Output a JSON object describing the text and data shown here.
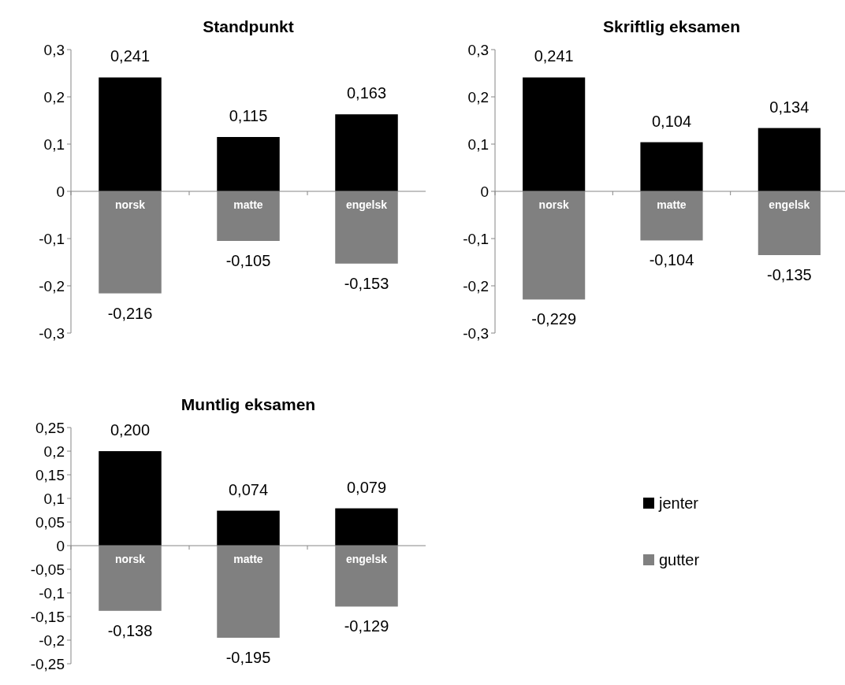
{
  "chart_data": [
    {
      "type": "bar",
      "stacked": true,
      "title": "Standpunkt",
      "categories": [
        "norsk",
        "matte",
        "engelsk"
      ],
      "ylim": [
        -0.3,
        0.3
      ],
      "yticks": [
        {
          "value": -0.3,
          "label": "-0,3"
        },
        {
          "value": -0.2,
          "label": "-0,2"
        },
        {
          "value": -0.1,
          "label": "-0,1"
        },
        {
          "value": 0,
          "label": "0"
        },
        {
          "value": 0.1,
          "label": "0,1"
        },
        {
          "value": 0.2,
          "label": "0,2"
        },
        {
          "value": 0.3,
          "label": "0,3"
        }
      ],
      "grid": false,
      "legend": false,
      "series": [
        {
          "color": "#000000",
          "values": [
            0.241,
            0.115,
            0.163
          ],
          "value_labels": [
            "0,241",
            "0,115",
            "0,163"
          ]
        },
        {
          "color": "#808080",
          "values": [
            -0.216,
            -0.105,
            -0.153
          ],
          "value_labels": [
            "-0,216",
            "-0,105",
            "-0,153"
          ]
        }
      ]
    },
    {
      "type": "bar",
      "stacked": true,
      "title": "Skriftlig eksamen",
      "categories": [
        "norsk",
        "matte",
        "engelsk"
      ],
      "ylim": [
        -0.3,
        0.3
      ],
      "yticks": [
        {
          "value": -0.3,
          "label": "-0,3"
        },
        {
          "value": -0.2,
          "label": "-0,2"
        },
        {
          "value": -0.1,
          "label": "-0,1"
        },
        {
          "value": 0,
          "label": "0"
        },
        {
          "value": 0.1,
          "label": "0,1"
        },
        {
          "value": 0.2,
          "label": "0,2"
        },
        {
          "value": 0.3,
          "label": "0,3"
        }
      ],
      "grid": false,
      "legend": false,
      "series": [
        {
          "color": "#000000",
          "values": [
            0.241,
            0.104,
            0.134
          ],
          "value_labels": [
            "0,241",
            "0,104",
            "0,134"
          ]
        },
        {
          "color": "#808080",
          "values": [
            -0.229,
            -0.104,
            -0.135
          ],
          "value_labels": [
            "-0,229",
            "-0,104",
            "-0,135"
          ]
        }
      ]
    },
    {
      "type": "bar",
      "stacked": true,
      "title": "Muntlig eksamen",
      "categories": [
        "norsk",
        "matte",
        "engelsk"
      ],
      "ylim": [
        -0.25,
        0.25
      ],
      "yticks": [
        {
          "value": -0.25,
          "label": "-0,25"
        },
        {
          "value": -0.2,
          "label": "-0,2"
        },
        {
          "value": -0.15,
          "label": "-0,15"
        },
        {
          "value": -0.1,
          "label": "-0,1"
        },
        {
          "value": -0.05,
          "label": "-0,05"
        },
        {
          "value": 0,
          "label": "0"
        },
        {
          "value": 0.05,
          "label": "0,05"
        },
        {
          "value": 0.1,
          "label": "0,1"
        },
        {
          "value": 0.15,
          "label": "0,15"
        },
        {
          "value": 0.2,
          "label": "0,2"
        },
        {
          "value": 0.25,
          "label": "0,25"
        }
      ],
      "grid": false,
      "legend": "right",
      "series": [
        {
          "name": "jenter",
          "color": "#000000",
          "values": [
            0.2,
            0.074,
            0.079
          ],
          "value_labels": [
            "0,200",
            "0,074",
            "0,079"
          ]
        },
        {
          "name": "gutter",
          "color": "#808080",
          "values": [
            -0.138,
            -0.195,
            -0.129
          ],
          "value_labels": [
            "-0,138",
            "-0,195",
            "-0,129"
          ]
        }
      ]
    }
  ]
}
